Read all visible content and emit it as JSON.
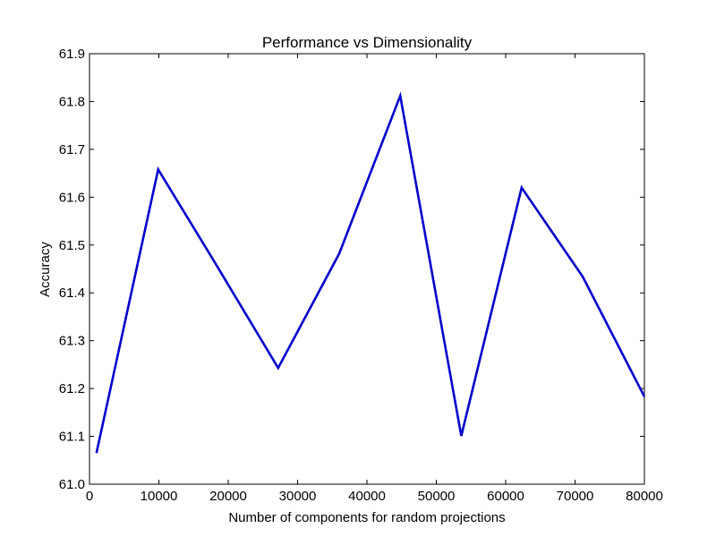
{
  "chart_data": {
    "type": "line",
    "title": "Performance vs Dimensionality",
    "xlabel": "Number of components for random projections",
    "ylabel": "Accuracy",
    "xlim": [
      0,
      80000
    ],
    "ylim": [
      61.0,
      61.9
    ],
    "x_ticks": [
      0,
      10000,
      20000,
      30000,
      40000,
      50000,
      60000,
      70000,
      80000
    ],
    "y_ticks": [
      61.0,
      61.1,
      61.2,
      61.3,
      61.4,
      61.5,
      61.6,
      61.7,
      61.8,
      61.9
    ],
    "x_tick_labels": [
      "0",
      "10000",
      "20000",
      "30000",
      "40000",
      "50000",
      "60000",
      "70000",
      "80000"
    ],
    "y_tick_labels": [
      "61.0",
      "61.1",
      "61.2",
      "61.3",
      "61.4",
      "61.5",
      "61.6",
      "61.7",
      "61.8",
      "61.9"
    ],
    "grid": false,
    "series": [
      {
        "color": "#0000cc",
        "x": [
          1000,
          9900,
          18300,
          27200,
          36000,
          44800,
          53600,
          62300,
          71100,
          80000
        ],
        "y": [
          61.065,
          61.658,
          61.458,
          61.243,
          61.482,
          61.812,
          61.101,
          61.62,
          61.434,
          61.183
        ]
      }
    ]
  }
}
